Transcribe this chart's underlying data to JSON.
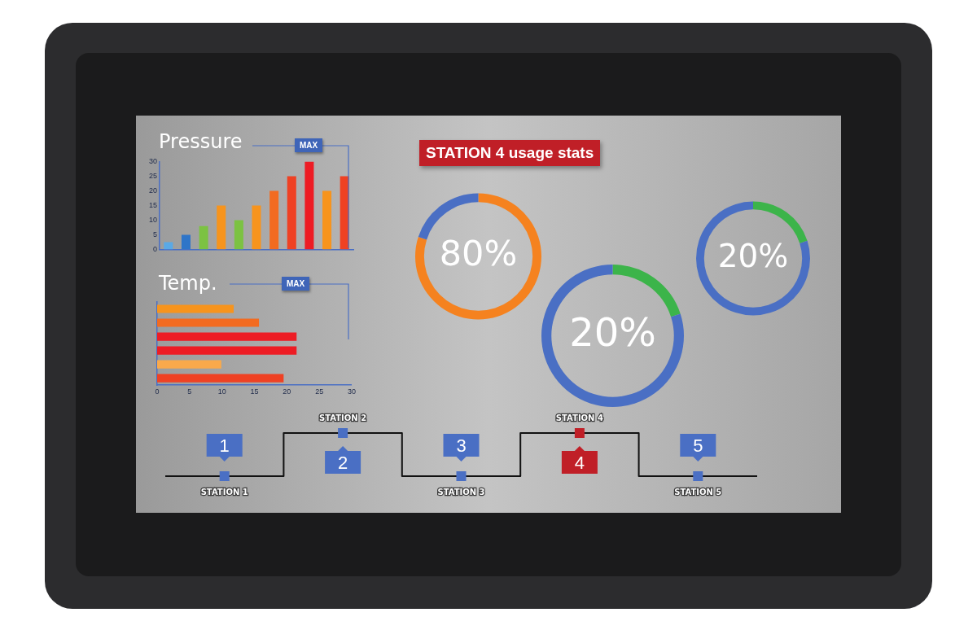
{
  "chart_data": [
    {
      "type": "bar",
      "title": "Pressure",
      "categories": [
        null,
        null,
        null,
        null,
        null,
        null,
        null,
        null,
        null,
        null,
        null
      ],
      "values": [
        2.5,
        5,
        8,
        15,
        10,
        15,
        20,
        25,
        30,
        20,
        25
      ],
      "colors": [
        "#5aa9e6",
        "#2f75c8",
        "#7cc242",
        "#f7941d",
        "#7cc242",
        "#f7941d",
        "#f26b21",
        "#ef4123",
        "#ed1c24",
        "#f7941d",
        "#ef4123"
      ],
      "ylim": [
        0,
        30
      ],
      "yticks": [
        0,
        5,
        10,
        15,
        20,
        25,
        30
      ],
      "grid": false,
      "legend": false,
      "tick_labels": "y",
      "annotations": [
        "MAX"
      ]
    },
    {
      "type": "bar",
      "orientation": "horizontal",
      "title": "Temp.",
      "categories": [
        null,
        null,
        null,
        null,
        null,
        null
      ],
      "values": [
        11.8,
        15.7,
        21.5,
        21.5,
        9.9,
        19.5
      ],
      "colors": [
        "#f7941d",
        "#f26b21",
        "#ed1c24",
        "#ed1c24",
        "#f9a94b",
        "#ef4123"
      ],
      "xlim": [
        0,
        30
      ],
      "xticks": [
        0,
        5,
        10,
        15,
        20,
        25,
        30
      ],
      "grid": false,
      "legend": false,
      "tick_labels": "x",
      "annotations": [
        "MAX"
      ]
    },
    {
      "type": "donut",
      "title": "STATION 4 usage stats",
      "categories": [
        null,
        null
      ],
      "values": [
        80,
        20
      ],
      "colors": [
        "#f5821f",
        "#4a6fc4"
      ],
      "value_labels": [
        "80%",
        null
      ],
      "legend": false
    },
    {
      "type": "donut",
      "categories": [
        null,
        null
      ],
      "values": [
        20,
        80
      ],
      "colors": [
        "#3cb44a",
        "#4a6fc4"
      ],
      "value_labels": [
        "20%",
        null
      ],
      "legend": false
    },
    {
      "type": "donut",
      "categories": [
        null,
        null
      ],
      "values": [
        20,
        80
      ],
      "colors": [
        "#3cb44a",
        "#4a6fc4"
      ],
      "value_labels": [
        "20%",
        null
      ],
      "legend": false
    },
    {
      "type": "other",
      "categories": [
        "1",
        "2",
        "3",
        "4",
        "5"
      ],
      "colors": [
        "#4a6fc4",
        "#4a6fc4",
        "#4a6fc4",
        "#c01f27",
        "#4a6fc4"
      ],
      "annotations": [
        "STATION 1",
        "STATION 2",
        "STATION 3",
        "STATION 4",
        "STATION 5"
      ]
    }
  ]
}
